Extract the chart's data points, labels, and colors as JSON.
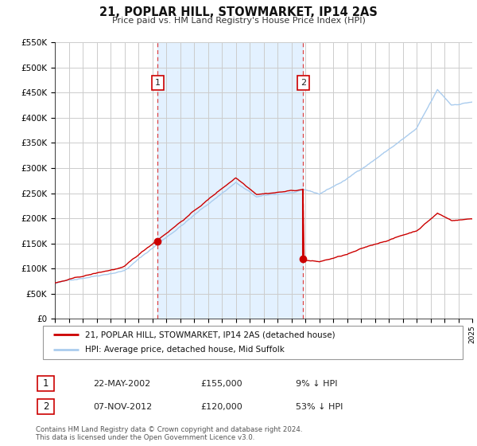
{
  "title": "21, POPLAR HILL, STOWMARKET, IP14 2AS",
  "subtitle": "Price paid vs. HM Land Registry's House Price Index (HPI)",
  "background_color": "#ffffff",
  "grid_color": "#cccccc",
  "hpi_color": "#aaccee",
  "price_color": "#cc0000",
  "vline_color": "#dd4444",
  "shade_color": "#ddeeff",
  "sale1_year": 2002.38,
  "sale1_price": 155000,
  "sale1_label": "1",
  "sale1_date": "22-MAY-2002",
  "sale1_pct": "9% ↓ HPI",
  "sale2_year": 2012.85,
  "sale2_price": 120000,
  "sale2_label": "2",
  "sale2_date": "07-NOV-2012",
  "sale2_pct": "53% ↓ HPI",
  "legend_line1": "21, POPLAR HILL, STOWMARKET, IP14 2AS (detached house)",
  "legend_line2": "HPI: Average price, detached house, Mid Suffolk",
  "footnote1": "Contains HM Land Registry data © Crown copyright and database right 2024.",
  "footnote2": "This data is licensed under the Open Government Licence v3.0.",
  "ylim_max": 550000,
  "xmin": 1995,
  "xmax": 2025
}
